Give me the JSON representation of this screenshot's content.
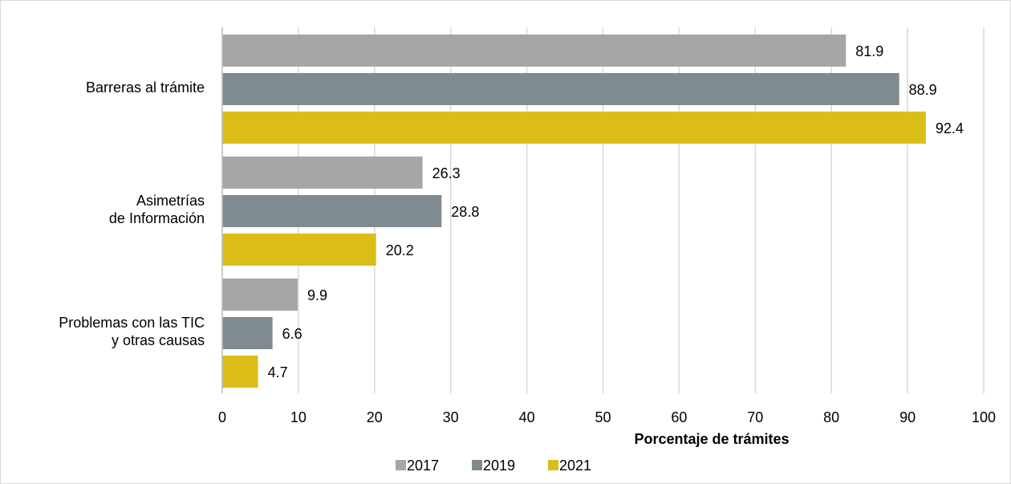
{
  "chart_data": {
    "type": "barh",
    "categories": [
      [
        "Barreras al trámite"
      ],
      [
        "Asimetrías",
        "de Información"
      ],
      [
        "Problemas con las TIC",
        "y otras  causas"
      ]
    ],
    "series": [
      {
        "name": "2017",
        "color": "#a6a6a6",
        "values": [
          81.9,
          26.3,
          9.9
        ]
      },
      {
        "name": "2019",
        "color": "#7f8b91",
        "values": [
          88.9,
          28.8,
          6.6
        ]
      },
      {
        "name": "2021",
        "color": "#dbbd18",
        "values": [
          92.4,
          20.2,
          4.7
        ]
      }
    ],
    "xlabel": "Porcentaje de trámites",
    "xlim": [
      0,
      100
    ],
    "xticks": [
      0,
      10,
      20,
      30,
      40,
      50,
      60,
      70,
      80,
      90,
      100
    ],
    "grid": true,
    "legend": "bottom"
  }
}
